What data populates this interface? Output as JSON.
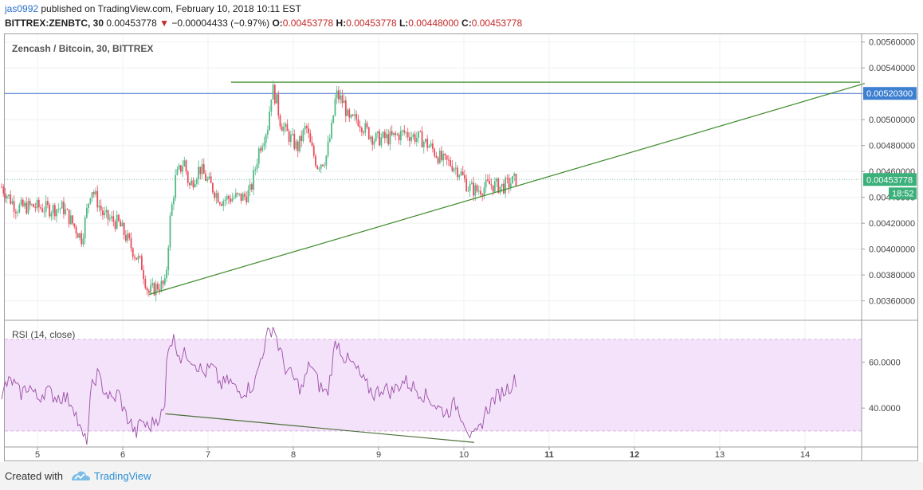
{
  "header": {
    "author": "jas0992",
    "published": " published on TradingView.com, February 10, 2018 10:11 EST",
    "symbol": "BITTREX:ZENBTC, 30",
    "last": "0.00453778",
    "change": "−0.00004433 (−0.97%)",
    "o_label": "O:",
    "o": "0.00453778",
    "h_label": "H:",
    "h": "0.00453778",
    "l_label": "L:",
    "l": "0.00448000",
    "c_label": "C:",
    "c": "0.00453778"
  },
  "footer": {
    "created": "Created with",
    "brand": "TradingView"
  },
  "colors": {
    "up": "#53b987",
    "down": "#eb4d5c",
    "trend": "#3d8a2a",
    "hline": "#4a78d4",
    "rsi": "#9c4ea6",
    "rsi_band": "#f3e2fa",
    "price_label": "#3bb07a",
    "hline_label": "#3d7fd1"
  },
  "chart_data": [
    {
      "type": "candlestick",
      "title": "Zencash / Bitcoin, 30, BITTREX",
      "x_ticks": [
        "5",
        "6",
        "7",
        "8",
        "9",
        "10",
        "11",
        "12",
        "13",
        "14"
      ],
      "bold_ticks": [
        "11",
        "12"
      ],
      "y_ticks": [
        "0.00360000",
        "0.00380000",
        "0.00400000",
        "0.00420000",
        "0.00440000",
        "0.00460000",
        "0.00480000",
        "0.00500000",
        "0.00520000",
        "0.00540000",
        "0.00560000"
      ],
      "ylim": [
        0.00345,
        0.00566
      ],
      "last_price_label": "0.00453778",
      "countdown_label": "18:52",
      "hline_label": "0.00520300",
      "hline_value": 0.005203,
      "resistance_value": 0.00529,
      "trendline": {
        "from": {
          "x": 6.31,
          "y": 0.00365
        },
        "to": {
          "x": 14.7,
          "y": 0.00528
        }
      },
      "candles_path": [
        [
          4.58,
          0.00448
        ],
        [
          4.75,
          0.00432
        ],
        [
          4.95,
          0.00433
        ],
        [
          5.15,
          0.00431
        ],
        [
          5.3,
          0.00432
        ],
        [
          5.52,
          0.00408
        ],
        [
          5.63,
          0.00448
        ],
        [
          5.78,
          0.00425
        ],
        [
          5.95,
          0.0042
        ],
        [
          6.05,
          0.00408
        ],
        [
          6.15,
          0.00395
        ],
        [
          6.22,
          0.00388
        ],
        [
          6.3,
          0.00366
        ],
        [
          6.42,
          0.00372
        ],
        [
          6.5,
          0.00372
        ],
        [
          6.55,
          0.0042
        ],
        [
          6.62,
          0.00455
        ],
        [
          6.72,
          0.00468
        ],
        [
          6.78,
          0.00448
        ],
        [
          6.9,
          0.00463
        ],
        [
          7.0,
          0.00452
        ],
        [
          7.15,
          0.00438
        ],
        [
          7.3,
          0.0044
        ],
        [
          7.42,
          0.0044
        ],
        [
          7.5,
          0.00445
        ],
        [
          7.6,
          0.00478
        ],
        [
          7.7,
          0.00495
        ],
        [
          7.75,
          0.00525
        ],
        [
          7.8,
          0.00515
        ],
        [
          7.85,
          0.00498
        ],
        [
          7.92,
          0.0049
        ],
        [
          8.05,
          0.00478
        ],
        [
          8.15,
          0.00495
        ],
        [
          8.2,
          0.0048
        ],
        [
          8.28,
          0.00465
        ],
        [
          8.38,
          0.0047
        ],
        [
          8.45,
          0.00493
        ],
        [
          8.5,
          0.0052
        ],
        [
          8.6,
          0.00512
        ],
        [
          8.65,
          0.00498
        ],
        [
          8.75,
          0.00501
        ],
        [
          8.85,
          0.00492
        ],
        [
          8.95,
          0.00485
        ],
        [
          9.15,
          0.00486
        ],
        [
          9.3,
          0.0049
        ],
        [
          9.5,
          0.00485
        ],
        [
          9.62,
          0.00478
        ],
        [
          9.75,
          0.00468
        ],
        [
          9.85,
          0.00466
        ],
        [
          9.95,
          0.0046
        ],
        [
          10.05,
          0.00448
        ],
        [
          10.15,
          0.00445
        ],
        [
          10.3,
          0.0045
        ],
        [
          10.45,
          0.00448
        ],
        [
          10.62,
          0.00454
        ]
      ]
    },
    {
      "type": "line",
      "title": "RSI (14, close)",
      "y_ticks": [
        "40.0000",
        "60.0000"
      ],
      "band": [
        30,
        70
      ],
      "ylim": [
        23,
        78
      ],
      "divergence_line": {
        "from": {
          "x": 6.5,
          "y": 37.5
        },
        "to": {
          "x": 10.12,
          "y": 25
        }
      },
      "values_path": [
        [
          4.58,
          42
        ],
        [
          4.62,
          50
        ],
        [
          4.7,
          52
        ],
        [
          4.8,
          46
        ],
        [
          4.9,
          50
        ],
        [
          5.0,
          44
        ],
        [
          5.1,
          48
        ],
        [
          5.2,
          45
        ],
        [
          5.3,
          45
        ],
        [
          5.42,
          42
        ],
        [
          5.5,
          30
        ],
        [
          5.58,
          24
        ],
        [
          5.63,
          48
        ],
        [
          5.7,
          55
        ],
        [
          5.78,
          48
        ],
        [
          5.88,
          43
        ],
        [
          5.95,
          47
        ],
        [
          6.02,
          38
        ],
        [
          6.1,
          33
        ],
        [
          6.15,
          28
        ],
        [
          6.22,
          35
        ],
        [
          6.3,
          31
        ],
        [
          6.38,
          35
        ],
        [
          6.45,
          37
        ],
        [
          6.5,
          40
        ],
        [
          6.52,
          68
        ],
        [
          6.6,
          70
        ],
        [
          6.68,
          62
        ],
        [
          6.75,
          64
        ],
        [
          6.85,
          60
        ],
        [
          6.95,
          55
        ],
        [
          7.05,
          58
        ],
        [
          7.15,
          50
        ],
        [
          7.25,
          52
        ],
        [
          7.35,
          47
        ],
        [
          7.45,
          48
        ],
        [
          7.55,
          51
        ],
        [
          7.62,
          62
        ],
        [
          7.7,
          72
        ],
        [
          7.77,
          76
        ],
        [
          7.82,
          68
        ],
        [
          7.9,
          58
        ],
        [
          8.0,
          53
        ],
        [
          8.1,
          48
        ],
        [
          8.2,
          60
        ],
        [
          8.3,
          50
        ],
        [
          8.4,
          46
        ],
        [
          8.45,
          58
        ],
        [
          8.5,
          70
        ],
        [
          8.6,
          62
        ],
        [
          8.72,
          58
        ],
        [
          8.85,
          50
        ],
        [
          8.95,
          46
        ],
        [
          9.05,
          49
        ],
        [
          9.15,
          47
        ],
        [
          9.3,
          52
        ],
        [
          9.45,
          48
        ],
        [
          9.6,
          44
        ],
        [
          9.7,
          40
        ],
        [
          9.8,
          38
        ],
        [
          9.9,
          42
        ],
        [
          10.0,
          35
        ],
        [
          10.1,
          26
        ],
        [
          10.18,
          30
        ],
        [
          10.25,
          38
        ],
        [
          10.35,
          44
        ],
        [
          10.45,
          47
        ],
        [
          10.55,
          50
        ],
        [
          10.62,
          53
        ]
      ]
    }
  ]
}
